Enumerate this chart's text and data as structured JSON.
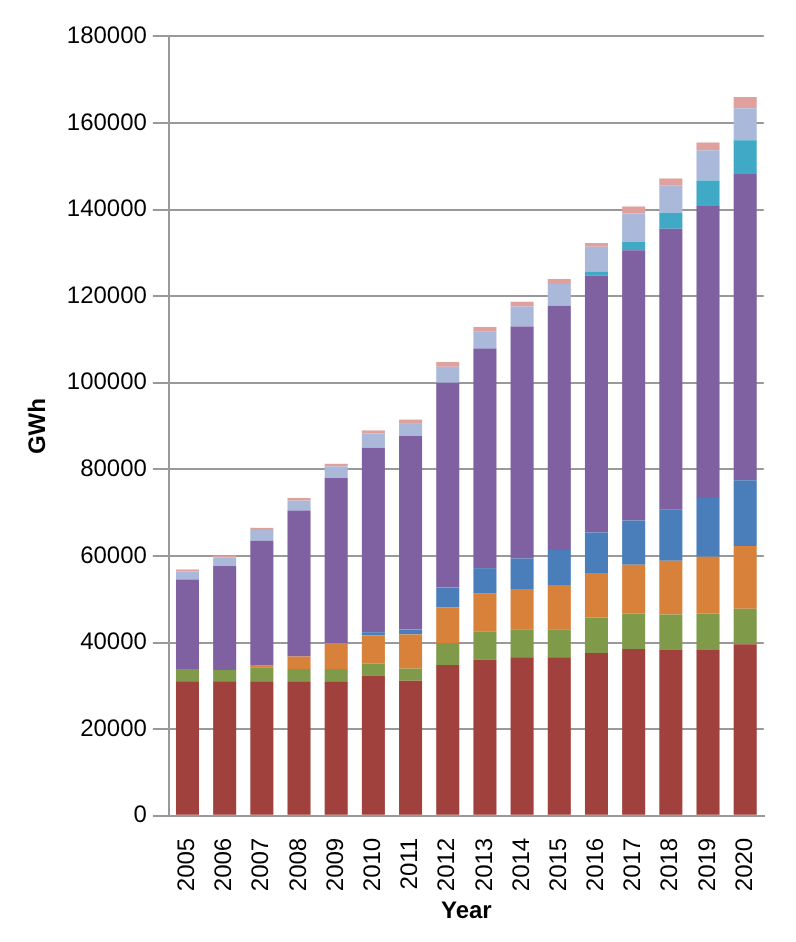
{
  "chart_data": {
    "type": "bar",
    "stacked": true,
    "xlabel": "Year",
    "ylabel": "GWh",
    "categories": [
      "2005",
      "2006",
      "2007",
      "2008",
      "2009",
      "2010",
      "2011",
      "2012",
      "2013",
      "2014",
      "2015",
      "2016",
      "2017",
      "2018",
      "2019",
      "2020"
    ],
    "series": [
      {
        "color": "#a0413e",
        "values": [
          31100,
          31100,
          31100,
          31100,
          31100,
          32300,
          31200,
          34800,
          36000,
          36600,
          36600,
          37600,
          38500,
          38300,
          38300,
          39600
        ]
      },
      {
        "color": "#7f9a48",
        "values": [
          2800,
          2600,
          3200,
          2800,
          2800,
          2900,
          2800,
          5100,
          6500,
          6500,
          6500,
          8200,
          8200,
          8200,
          8400,
          8200
        ]
      },
      {
        "color": "#d8813b",
        "values": [
          0,
          0,
          500,
          2900,
          6000,
          6500,
          7900,
          8200,
          8800,
          9300,
          10200,
          10300,
          11300,
          12400,
          13100,
          14500
        ]
      },
      {
        "color": "#4a7ebb",
        "values": [
          0,
          0,
          0,
          0,
          0,
          700,
          1100,
          4600,
          5900,
          7000,
          8100,
          9300,
          10200,
          11800,
          13600,
          15200
        ]
      },
      {
        "color": "#7f60a0",
        "values": [
          20700,
          24000,
          28700,
          33700,
          38200,
          42600,
          44700,
          47300,
          50700,
          53600,
          56400,
          59400,
          62400,
          64900,
          67600,
          70900
        ]
      },
      {
        "color": "#3fa9c6",
        "values": [
          0,
          0,
          0,
          0,
          0,
          0,
          0,
          0,
          0,
          0,
          0,
          900,
          2000,
          3700,
          5700,
          7600
        ]
      },
      {
        "color": "#aab9d9",
        "values": [
          1800,
          2000,
          2500,
          2300,
          2600,
          3300,
          3000,
          3700,
          3900,
          4600,
          5000,
          5700,
          6500,
          6300,
          7000,
          7400
        ]
      },
      {
        "color": "#e0a09e",
        "values": [
          500,
          400,
          500,
          600,
          600,
          700,
          800,
          1100,
          1100,
          1100,
          1200,
          900,
          1600,
          1600,
          1800,
          2600
        ]
      }
    ],
    "ylim": [
      0,
      180000
    ],
    "yticks": [
      0,
      20000,
      40000,
      60000,
      80000,
      100000,
      120000,
      140000,
      160000,
      180000
    ],
    "grid": "y",
    "legend": false
  }
}
